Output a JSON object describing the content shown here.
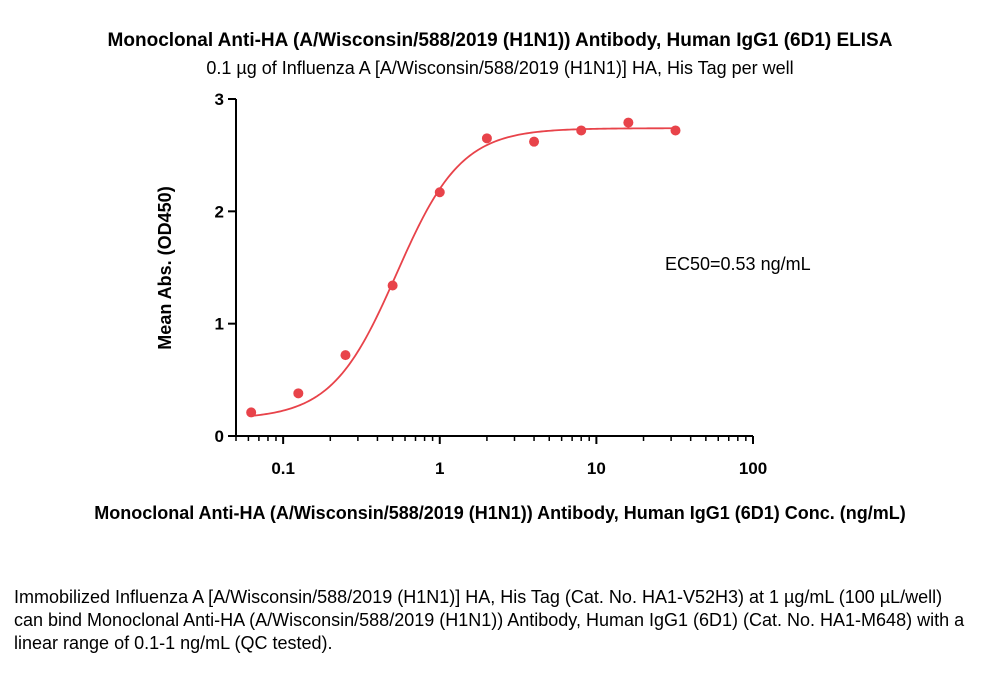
{
  "chart_data": {
    "type": "scatter",
    "title": "Monoclonal Anti-HA (A/Wisconsin/588/2019 (H1N1)) Antibody, Human IgG1 (6D1) ELISA",
    "subtitle": "0.1 µg of Influenza A [A/Wisconsin/588/2019 (H1N1)] HA, His Tag per well",
    "xlabel": "Monoclonal Anti-HA (A/Wisconsin/588/2019 (H1N1)) Antibody, Human IgG1 (6D1) Conc. (ng/mL)",
    "ylabel": "Mean Abs. (OD450)",
    "xscale": "log",
    "xlim": [
      0.05,
      100
    ],
    "ylim": [
      0,
      3
    ],
    "xticks": [
      0.1,
      1,
      10,
      100
    ],
    "xtick_labels": [
      "0.1",
      "1",
      "10",
      "100"
    ],
    "yticks": [
      0,
      1,
      2,
      3
    ],
    "ytick_labels": [
      "0",
      "1",
      "2",
      "3"
    ],
    "grid": false,
    "color": "#e8434a",
    "series": [
      {
        "x": [
          0.0625,
          0.125,
          0.25,
          0.5,
          1,
          2,
          4,
          8,
          16,
          32
        ],
        "y": [
          0.21,
          0.38,
          0.72,
          1.34,
          2.17,
          2.65,
          2.62,
          2.72,
          2.79,
          2.72
        ]
      }
    ],
    "fit": {
      "model": "4PL",
      "bottom": 0.15,
      "top": 2.74,
      "ec50": 0.53,
      "hill": 2.1,
      "x_range": [
        0.0625,
        32
      ]
    },
    "annotation": "EC50=0.53 ng/mL"
  },
  "caption": "Immobilized Influenza A [A/Wisconsin/588/2019 (H1N1)] HA, His Tag (Cat. No. HA1-V52H3) at 1 µg/mL (100 µL/well) can bind Monoclonal Anti-HA (A/Wisconsin/588/2019 (H1N1)) Antibody, Human IgG1 (6D1) (Cat. No. HA1-M648) with a linear range of 0.1-1 ng/mL (QC tested)."
}
